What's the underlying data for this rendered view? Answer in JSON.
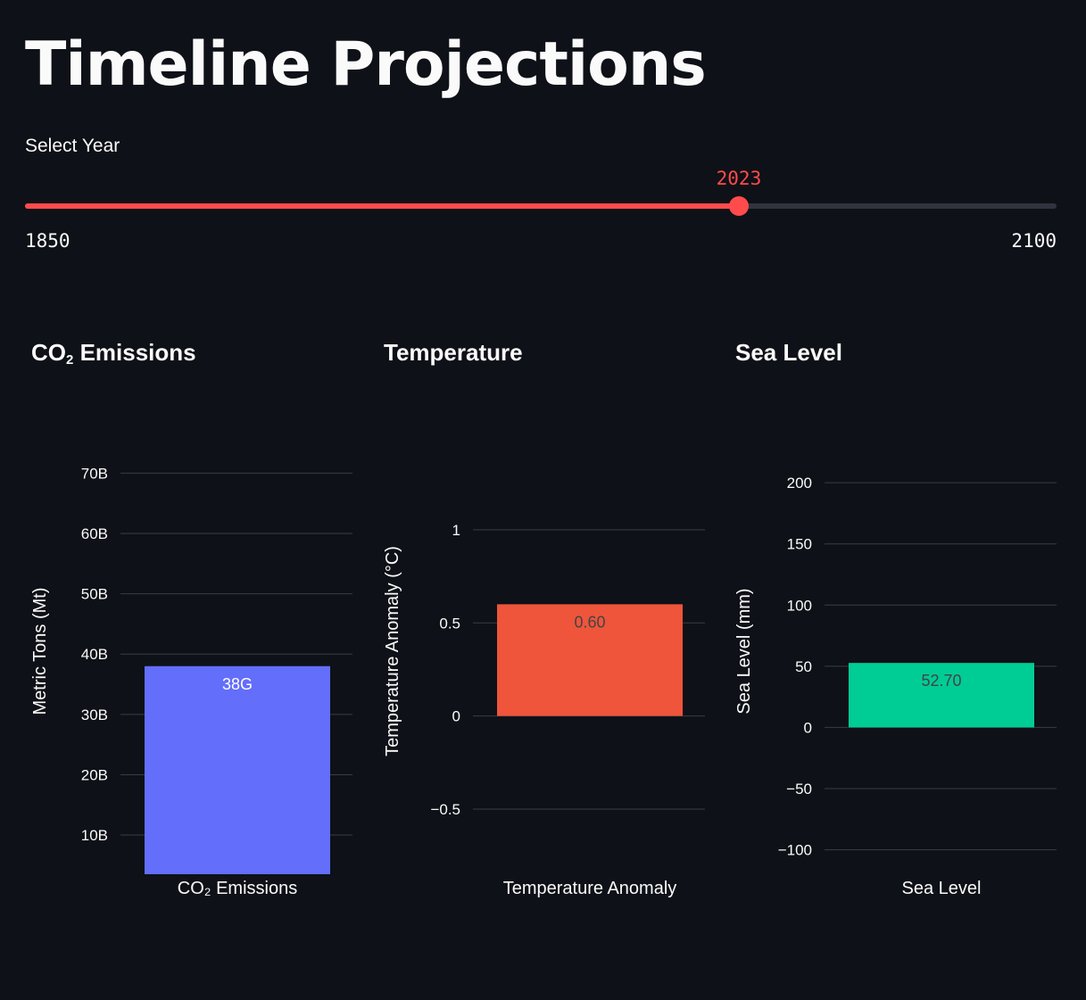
{
  "page": {
    "title": "Timeline Projections"
  },
  "slider": {
    "label": "Select Year",
    "min": 1850,
    "max": 2100,
    "value": 2023,
    "min_label": "1850",
    "max_label": "2100",
    "value_label": "2023",
    "accent": "#ff4b4b"
  },
  "charts": {
    "co2": {
      "heading_main": "CO",
      "heading_sub": "2",
      "heading_rest": " Emissions"
    },
    "temperature": {
      "heading": "Temperature"
    },
    "sea_level": {
      "heading": "Sea Level"
    }
  },
  "chart_data": [
    {
      "type": "bar",
      "categories": [
        "CO₂ Emissions"
      ],
      "values": [
        38
      ],
      "data_labels": [
        "38G"
      ],
      "ylabel": "Metric Tons (Mt)",
      "ylim": [
        3.5,
        74.5
      ],
      "y_ticks": [
        10,
        20,
        30,
        40,
        50,
        60,
        70
      ],
      "y_tick_labels": [
        "10B",
        "20B",
        "30B",
        "40B",
        "50B",
        "60B",
        "70B"
      ],
      "color": "#636efa",
      "label_color": "#ffffff",
      "grid": true
    },
    {
      "type": "bar",
      "categories": [
        "Temperature Anomaly"
      ],
      "values": [
        0.6
      ],
      "data_labels": [
        "0.60"
      ],
      "ylabel": "Temperature Anomaly (°C)",
      "ylim": [
        -0.85,
        1.45
      ],
      "y_ticks": [
        -0.5,
        0,
        0.5,
        1
      ],
      "y_tick_labels": [
        "−0.5",
        "0",
        "0.5",
        "1"
      ],
      "color": "#ef553b",
      "label_color": "#444444",
      "grid": true
    },
    {
      "type": "bar",
      "categories": [
        "Sea Level"
      ],
      "values": [
        52.7
      ],
      "data_labels": [
        "52.70"
      ],
      "ylabel": "Sea Level (mm)",
      "ylim": [
        -120,
        230
      ],
      "y_ticks": [
        -100,
        -50,
        0,
        50,
        100,
        150,
        200
      ],
      "y_tick_labels": [
        "−100",
        "−50",
        "0",
        "50",
        "100",
        "150",
        "200"
      ],
      "color": "#00cc96",
      "label_color": "#444444",
      "grid": true
    }
  ]
}
